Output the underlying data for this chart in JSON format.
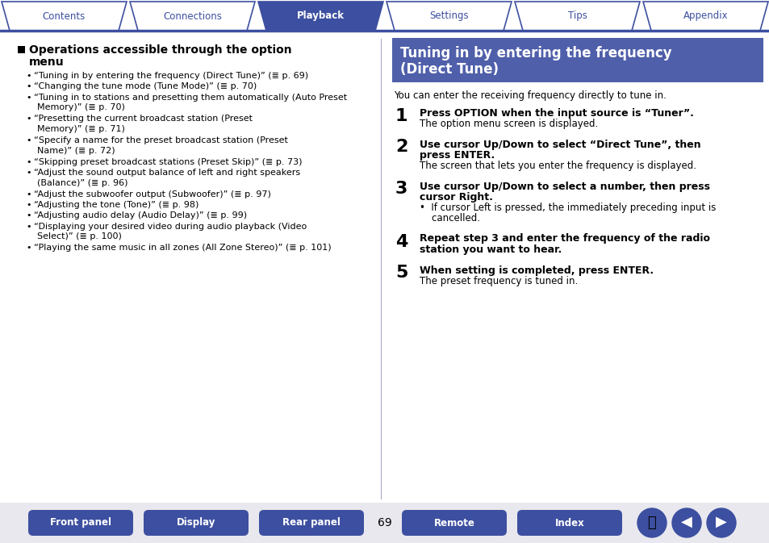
{
  "bg_color": "#ffffff",
  "tab_items": [
    "Contents",
    "Connections",
    "Playback",
    "Settings",
    "Tips",
    "Appendix"
  ],
  "tab_active": "Playback",
  "tab_active_bg": "#3d4fa0",
  "tab_inactive_bg": "#ffffff",
  "tab_text_color_active": "#ffffff",
  "tab_text_color_inactive": "#3d4fa0",
  "tab_border_color": "#3d4fa0",
  "tab_line_color": "#3d4fa0",
  "left_title_line1": "Operations accessible through the option",
  "left_title_line2": "menu",
  "left_bullets": [
    [
      "“Tuning in by entering the frequency (Direct Tune)” (≣ p. 69)",
      ""
    ],
    [
      "“Changing the tune mode (Tune Mode)” (≣ p. 70)",
      ""
    ],
    [
      "“Tuning in to stations and presetting them automatically (Auto Preset",
      "Memory)” (≣ p. 70)"
    ],
    [
      "“Presetting the current broadcast station (Preset",
      "Memory)” (≣ p. 71)"
    ],
    [
      "“Specify a name for the preset broadcast station (Preset",
      "Name)” (≣ p. 72)"
    ],
    [
      "“Skipping preset broadcast stations (Preset Skip)” (≣ p. 73)",
      ""
    ],
    [
      "“Adjust the sound output balance of left and right speakers",
      "(Balance)” (≣ p. 96)"
    ],
    [
      "“Adjust the subwoofer output (Subwoofer)” (≣ p. 97)",
      ""
    ],
    [
      "“Adjusting the tone (Tone)” (≣ p. 98)",
      ""
    ],
    [
      "“Adjusting audio delay (Audio Delay)” (≣ p. 99)",
      ""
    ],
    [
      "“Displaying your desired video during audio playback (Video",
      "Select)” (≣ p. 100)"
    ],
    [
      "“Playing the same music in all zones (All Zone Stereo)” (≣ p. 101)",
      ""
    ]
  ],
  "right_header_bg": "#4f5faa",
  "right_header_text_line1": "Tuning in by entering the frequency",
  "right_header_text_line2": "(Direct Tune)",
  "right_intro": "You can enter the receiving frequency directly to tune in.",
  "steps": [
    {
      "num": "1",
      "bold_lines": [
        "Press OPTION when the input source is “Tuner”."
      ],
      "normal_lines": [
        "The option menu screen is displayed."
      ]
    },
    {
      "num": "2",
      "bold_lines": [
        "Use cursor Up/Down to select “Direct Tune”, then",
        "press ENTER."
      ],
      "normal_lines": [
        "The screen that lets you enter the frequency is displayed."
      ]
    },
    {
      "num": "3",
      "bold_lines": [
        "Use cursor Up/Down to select a number, then press",
        "cursor Right."
      ],
      "normal_lines": [
        "•  If cursor Left is pressed, the immediately preceding input is",
        "    cancelled."
      ]
    },
    {
      "num": "4",
      "bold_lines": [
        "Repeat step 3 and enter the frequency of the radio",
        "station you want to hear."
      ],
      "normal_lines": []
    },
    {
      "num": "5",
      "bold_lines": [
        "When setting is completed, press ENTER."
      ],
      "normal_lines": [
        "The preset frequency is tuned in."
      ]
    }
  ],
  "bottom_buttons_left": [
    "Front panel",
    "Display",
    "Rear panel"
  ],
  "bottom_buttons_right": [
    "Remote",
    "Index"
  ],
  "bottom_bg": "#3d4fa0",
  "bottom_text_color": "#ffffff",
  "page_num": "69",
  "divider_color": "#3d4fa0",
  "step_num_color": "#1a1aaa",
  "bottom_bar_bg": "#f0f0f0"
}
